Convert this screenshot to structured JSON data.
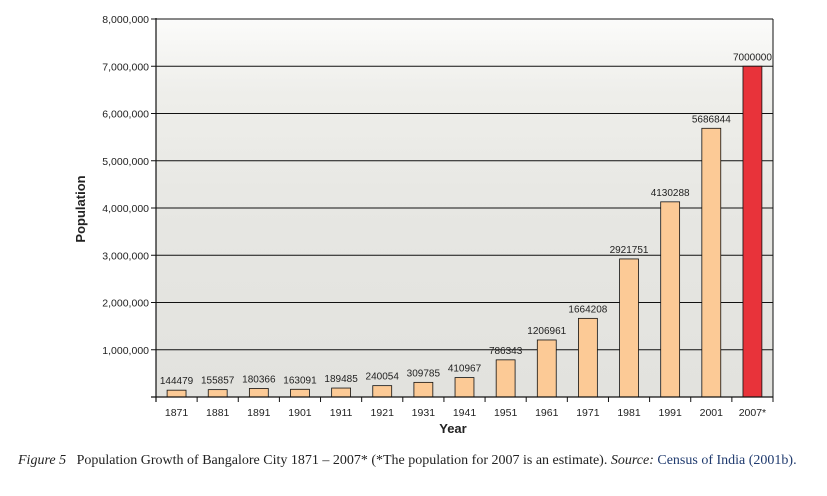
{
  "chart_data": {
    "type": "bar",
    "title": "",
    "xlabel": "Year",
    "ylabel": "Population",
    "categories": [
      "1871",
      "1881",
      "1891",
      "1901",
      "1911",
      "1921",
      "1931",
      "1941",
      "1951",
      "1961",
      "1971",
      "1981",
      "1991",
      "2001",
      "2007*"
    ],
    "values": [
      144479,
      155857,
      180366,
      163091,
      189485,
      240054,
      309785,
      410967,
      786343,
      1206961,
      1664208,
      2921751,
      4130288,
      5686844,
      7000000
    ],
    "data_labels": [
      "144479",
      "155857",
      "180366",
      "163091",
      "189485",
      "240054",
      "309785",
      "410967",
      "786343",
      "1206961",
      "1664208",
      "2921751",
      "4130288",
      "5686844",
      "7000000"
    ],
    "ylim": [
      0,
      8000000
    ],
    "yticks": [
      0,
      1000000,
      2000000,
      3000000,
      4000000,
      5000000,
      6000000,
      7000000,
      8000000
    ],
    "ytick_labels": [
      "",
      "1,000,000",
      "2,000,000",
      "3,000,000",
      "4,000,000",
      "5,000,000",
      "6,000,000",
      "7,000,000",
      "8,000,000"
    ],
    "grid": true,
    "legend": "none",
    "colors": {
      "bar": "#fcca96",
      "highlight_bar": "#e8333a",
      "bar_edge": "#111111",
      "grid": "#111111"
    },
    "highlight_index": 14
  },
  "caption": {
    "figure_label": "Figure 5",
    "text": "Population Growth of Bangalore City 1871 – 2007* (*The population for 2007 is an estimate).",
    "source_label": "Source:",
    "source_text": "Census of India (2001b)."
  }
}
